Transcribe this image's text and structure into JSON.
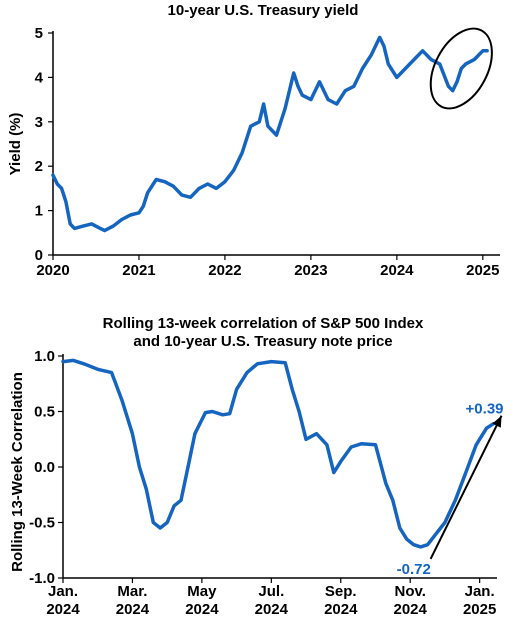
{
  "chart_data": [
    {
      "type": "line",
      "title": "10-year U.S. Treasury yield",
      "ylabel": "Yield (%)",
      "xlabel": "",
      "xlim": [
        2020,
        2025.2
      ],
      "ylim": [
        0,
        5
      ],
      "x_ticks": [
        "2020",
        "2021",
        "2022",
        "2023",
        "2024",
        "2025"
      ],
      "y_ticks": [
        "0",
        "1",
        "2",
        "3",
        "4",
        "5"
      ],
      "line_color": "#1565c0",
      "grid": false,
      "highlight": "ellipse around late 2024 – early 2025",
      "series": [
        {
          "x": [
            2020.0,
            2020.05,
            2020.1,
            2020.15,
            2020.2,
            2020.25,
            2020.35,
            2020.45,
            2020.55,
            2020.6,
            2020.7,
            2020.8,
            2020.9,
            2021.0,
            2021.05,
            2021.1,
            2021.2,
            2021.3,
            2021.4,
            2021.5,
            2021.6,
            2021.7,
            2021.8,
            2021.9,
            2022.0,
            2022.1,
            2022.2,
            2022.3,
            2022.4,
            2022.45,
            2022.5,
            2022.6,
            2022.7,
            2022.8,
            2022.85,
            2022.9,
            2023.0,
            2023.1,
            2023.2,
            2023.3,
            2023.4,
            2023.5,
            2023.6,
            2023.7,
            2023.8,
            2023.85,
            2023.9,
            2024.0,
            2024.1,
            2024.2,
            2024.3,
            2024.4,
            2024.5,
            2024.6,
            2024.65,
            2024.7,
            2024.75,
            2024.8,
            2024.9,
            2025.0,
            2025.05
          ],
          "y": [
            1.8,
            1.6,
            1.5,
            1.2,
            0.7,
            0.6,
            0.65,
            0.7,
            0.6,
            0.55,
            0.65,
            0.8,
            0.9,
            0.95,
            1.1,
            1.4,
            1.7,
            1.65,
            1.55,
            1.35,
            1.3,
            1.5,
            1.6,
            1.5,
            1.65,
            1.9,
            2.3,
            2.9,
            3.0,
            3.4,
            2.9,
            2.7,
            3.3,
            4.1,
            3.8,
            3.6,
            3.5,
            3.9,
            3.5,
            3.4,
            3.7,
            3.8,
            4.2,
            4.5,
            4.9,
            4.7,
            4.3,
            4.0,
            4.2,
            4.4,
            4.6,
            4.4,
            4.3,
            3.8,
            3.7,
            3.9,
            4.2,
            4.3,
            4.4,
            4.6,
            4.6
          ]
        }
      ]
    },
    {
      "type": "line",
      "title_lines": [
        "Rolling 13-week correlation of S&P 500 Index",
        "and 10-year U.S. Treasury note price"
      ],
      "ylabel": "Rolling 13-Week Correlation",
      "xlabel": "",
      "xlim": [
        0,
        12.5
      ],
      "ylim": [
        -1.0,
        1.0
      ],
      "x_ticks": [
        {
          "line1": "Jan.",
          "line2": "2024"
        },
        {
          "line1": "Mar.",
          "line2": "2024"
        },
        {
          "line1": "May",
          "line2": "2024"
        },
        {
          "line1": "Jul.",
          "line2": "2024"
        },
        {
          "line1": "Sep.",
          "line2": "2024"
        },
        {
          "line1": "Nov.",
          "line2": "2024"
        },
        {
          "line1": "Jan.",
          "line2": "2025"
        }
      ],
      "y_ticks": [
        "1.0",
        "0.5",
        "0.0",
        "-0.5",
        "-1.0"
      ],
      "line_color": "#1565c0",
      "grid": false,
      "annotations": [
        {
          "label": "-0.72",
          "x": 10.3,
          "y": -0.72
        },
        {
          "label": "+0.39",
          "x": 12.4,
          "y": 0.39
        }
      ],
      "series": [
        {
          "x": [
            0.0,
            0.3,
            0.6,
            1.0,
            1.4,
            1.7,
            2.0,
            2.2,
            2.4,
            2.6,
            2.8,
            3.0,
            3.2,
            3.4,
            3.6,
            3.8,
            4.1,
            4.3,
            4.6,
            4.8,
            5.0,
            5.3,
            5.6,
            6.0,
            6.4,
            6.6,
            6.8,
            7.0,
            7.3,
            7.6,
            7.8,
            8.0,
            8.3,
            8.6,
            9.0,
            9.3,
            9.5,
            9.7,
            9.9,
            10.1,
            10.3,
            10.5,
            10.7,
            11.0,
            11.3,
            11.6,
            11.9,
            12.2,
            12.4
          ],
          "y": [
            0.95,
            0.96,
            0.93,
            0.88,
            0.85,
            0.6,
            0.3,
            0.0,
            -0.2,
            -0.5,
            -0.55,
            -0.5,
            -0.35,
            -0.3,
            0.0,
            0.3,
            0.49,
            0.5,
            0.47,
            0.48,
            0.7,
            0.85,
            0.93,
            0.95,
            0.94,
            0.7,
            0.5,
            0.25,
            0.3,
            0.2,
            -0.05,
            0.05,
            0.18,
            0.21,
            0.2,
            -0.15,
            -0.3,
            -0.55,
            -0.65,
            -0.7,
            -0.72,
            -0.7,
            -0.62,
            -0.5,
            -0.3,
            -0.05,
            0.2,
            0.35,
            0.39
          ]
        }
      ]
    }
  ]
}
